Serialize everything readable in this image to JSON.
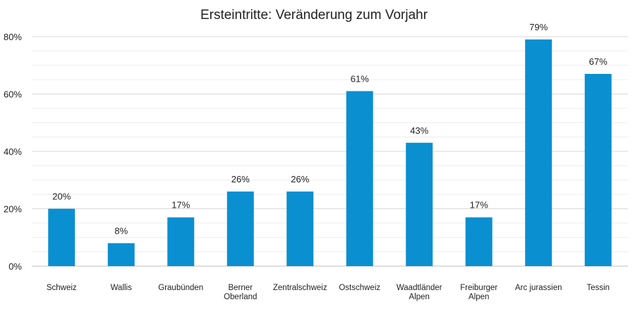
{
  "chart_data": {
    "type": "bar",
    "title": "Ersteintritte: Veränderung zum Vorjahr",
    "xlabel": "",
    "ylabel": "",
    "ylim": [
      0,
      80
    ],
    "yticks": [
      "0%",
      "20%",
      "40%",
      "60%",
      "80%"
    ],
    "grid": true,
    "bar_color": "#0a8fd0",
    "categories": [
      [
        "Schweiz"
      ],
      [
        "Wallis"
      ],
      [
        "Graubünden"
      ],
      [
        "Berner",
        "Oberland"
      ],
      [
        "Zentralschweiz"
      ],
      [
        "Ostschweiz"
      ],
      [
        "Waadtländer",
        "Alpen"
      ],
      [
        "Freiburger",
        "Alpen"
      ],
      [
        "Arc jurassien"
      ],
      [
        "Tessin"
      ]
    ],
    "values": [
      20,
      8,
      17,
      26,
      26,
      61,
      43,
      17,
      79,
      67
    ],
    "data_labels": [
      "20%",
      "8%",
      "17%",
      "26%",
      "26%",
      "61%",
      "43%",
      "17%",
      "79%",
      "67%"
    ]
  }
}
